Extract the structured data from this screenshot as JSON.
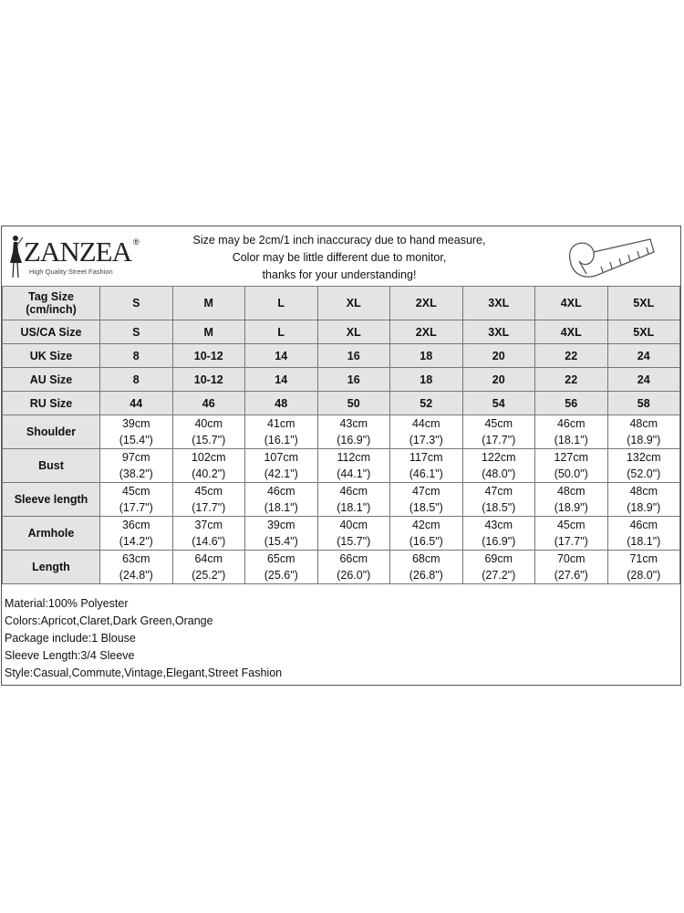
{
  "header": {
    "brand": "ZANZEA",
    "registered": "®",
    "tagline": "High Quality Street Fashion",
    "notice": [
      "Size may be 2cm/1 inch inaccuracy due to hand measure,",
      "Color may be little different due to monitor,",
      "thanks for your understanding!"
    ]
  },
  "size_rows": [
    {
      "label": "Tag Size (cm/inch)",
      "values": [
        "S",
        "M",
        "L",
        "XL",
        "2XL",
        "3XL",
        "4XL",
        "5XL"
      ]
    },
    {
      "label": "US/CA Size",
      "values": [
        "S",
        "M",
        "L",
        "XL",
        "2XL",
        "3XL",
        "4XL",
        "5XL"
      ]
    },
    {
      "label": "UK Size",
      "values": [
        "8",
        "10-12",
        "14",
        "16",
        "18",
        "20",
        "22",
        "24"
      ]
    },
    {
      "label": "AU Size",
      "values": [
        "8",
        "10-12",
        "14",
        "16",
        "18",
        "20",
        "22",
        "24"
      ]
    },
    {
      "label": "RU Size",
      "values": [
        "44",
        "46",
        "48",
        "50",
        "52",
        "54",
        "56",
        "58"
      ]
    }
  ],
  "measure_rows": [
    {
      "label": "Shoulder",
      "cm": [
        "39cm",
        "40cm",
        "41cm",
        "43cm",
        "44cm",
        "45cm",
        "46cm",
        "48cm"
      ],
      "inch": [
        "(15.4\")",
        "(15.7\")",
        "(16.1\")",
        "(16.9\")",
        "(17.3\")",
        "(17.7\")",
        "(18.1\")",
        "(18.9\")"
      ]
    },
    {
      "label": "Bust",
      "cm": [
        "97cm",
        "102cm",
        "107cm",
        "112cm",
        "117cm",
        "122cm",
        "127cm",
        "132cm"
      ],
      "inch": [
        "(38.2\")",
        "(40.2\")",
        "(42.1\")",
        "(44.1\")",
        "(46.1\")",
        "(48.0\")",
        "(50.0\")",
        "(52.0\")"
      ]
    },
    {
      "label": "Sleeve length",
      "cm": [
        "45cm",
        "45cm",
        "46cm",
        "46cm",
        "47cm",
        "47cm",
        "48cm",
        "48cm"
      ],
      "inch": [
        "(17.7\")",
        "(17.7\")",
        "(18.1\")",
        "(18.1\")",
        "(18.5\")",
        "(18.5\")",
        "(18.9\")",
        "(18.9\")"
      ]
    },
    {
      "label": "Armhole",
      "cm": [
        "36cm",
        "37cm",
        "39cm",
        "40cm",
        "42cm",
        "43cm",
        "45cm",
        "46cm"
      ],
      "inch": [
        "(14.2\")",
        "(14.6\")",
        "(15.4\")",
        "(15.7\")",
        "(16.5\")",
        "(16.9\")",
        "(17.7\")",
        "(18.1\")"
      ]
    },
    {
      "label": "Length",
      "cm": [
        "63cm",
        "64cm",
        "65cm",
        "66cm",
        "68cm",
        "69cm",
        "70cm",
        "71cm"
      ],
      "inch": [
        "(24.8\")",
        "(25.2\")",
        "(25.6\")",
        "(26.0\")",
        "(26.8\")",
        "(27.2\")",
        "(27.6\")",
        "(28.0\")"
      ]
    }
  ],
  "notes": [
    "Material:100% Polyester",
    "Colors:Apricot,Claret,Dark Green,Orange",
    "Package include:1 Blouse",
    "Sleeve Length:3/4 Sleeve",
    "Style:Casual,Commute,Vintage,Elegant,Street Fashion"
  ],
  "icons": [
    "woman-silhouette-icon",
    "measuring-tape-icon"
  ]
}
